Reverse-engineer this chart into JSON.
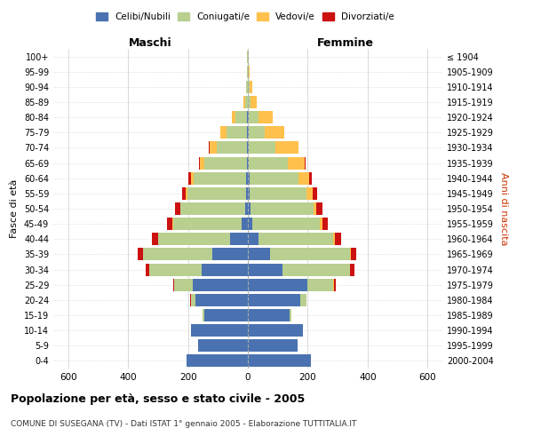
{
  "age_groups": [
    "0-4",
    "5-9",
    "10-14",
    "15-19",
    "20-24",
    "25-29",
    "30-34",
    "35-39",
    "40-44",
    "45-49",
    "50-54",
    "55-59",
    "60-64",
    "65-69",
    "70-74",
    "75-79",
    "80-84",
    "85-89",
    "90-94",
    "95-99",
    "100+"
  ],
  "birth_years": [
    "2000-2004",
    "1995-1999",
    "1990-1994",
    "1985-1989",
    "1980-1984",
    "1975-1979",
    "1970-1974",
    "1965-1969",
    "1960-1964",
    "1955-1959",
    "1950-1954",
    "1945-1949",
    "1940-1944",
    "1935-1939",
    "1930-1934",
    "1925-1929",
    "1920-1924",
    "1915-1919",
    "1910-1914",
    "1905-1909",
    "≤ 1904"
  ],
  "males": {
    "celibe": [
      205,
      165,
      190,
      145,
      175,
      185,
      155,
      120,
      60,
      20,
      10,
      7,
      5,
      4,
      3,
      2,
      2,
      0,
      0,
      0,
      0
    ],
    "coniugato": [
      0,
      0,
      0,
      5,
      15,
      60,
      175,
      230,
      240,
      230,
      215,
      195,
      175,
      140,
      100,
      70,
      40,
      10,
      5,
      3,
      2
    ],
    "vedovo": [
      0,
      0,
      0,
      0,
      0,
      0,
      0,
      0,
      1,
      2,
      2,
      5,
      10,
      15,
      25,
      20,
      10,
      5,
      2,
      1,
      0
    ],
    "divorziato": [
      0,
      0,
      0,
      0,
      2,
      5,
      10,
      18,
      20,
      18,
      15,
      12,
      8,
      5,
      2,
      0,
      0,
      0,
      0,
      0,
      0
    ]
  },
  "females": {
    "nubile": [
      210,
      165,
      185,
      140,
      175,
      200,
      115,
      75,
      35,
      15,
      10,
      7,
      5,
      4,
      3,
      2,
      2,
      0,
      0,
      0,
      0
    ],
    "coniugata": [
      0,
      0,
      0,
      5,
      20,
      85,
      225,
      265,
      250,
      225,
      210,
      190,
      165,
      130,
      90,
      55,
      35,
      10,
      6,
      3,
      2
    ],
    "vedova": [
      0,
      0,
      0,
      0,
      0,
      2,
      2,
      3,
      5,
      8,
      10,
      20,
      35,
      55,
      75,
      65,
      45,
      20,
      8,
      3,
      1
    ],
    "divorziata": [
      0,
      0,
      0,
      0,
      2,
      6,
      15,
      20,
      22,
      20,
      20,
      15,
      8,
      3,
      2,
      0,
      0,
      0,
      0,
      0,
      0
    ]
  },
  "colors": {
    "celibe_nubile": "#4a72b0",
    "coniugato": "#b8cf8f",
    "vedovo": "#ffc04c",
    "divorziato": "#cc1111"
  },
  "legend_labels": [
    "Celibi/Nubili",
    "Coniugati/e",
    "Vedovi/e",
    "Divorziati/e"
  ],
  "title": "Popolazione per età, sesso e stato civile - 2005",
  "subtitle": "COMUNE DI SUSEGANA (TV) - Dati ISTAT 1° gennaio 2005 - Elaborazione TUTTITALIA.IT",
  "label_maschi": "Maschi",
  "label_femmine": "Femmine",
  "ylabel_left": "Fasce di età",
  "ylabel_right": "Anni di nascita",
  "xlim": 650,
  "xtick_vals": [
    -600,
    -400,
    -200,
    0,
    200,
    400,
    600
  ],
  "background_color": "#ffffff",
  "grid_color": "#cccccc",
  "bar_height": 0.82
}
